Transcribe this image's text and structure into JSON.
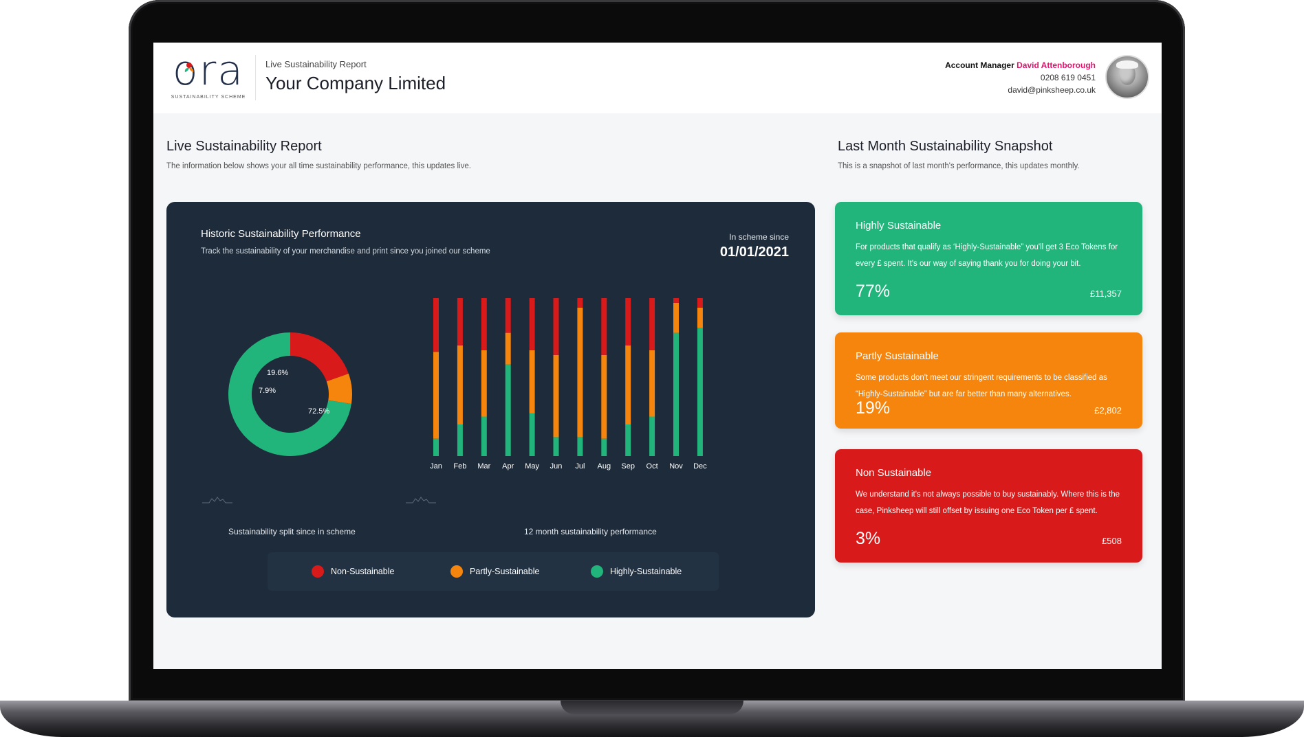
{
  "header": {
    "logo_text": "ora",
    "logo_sub": "SUSTAINABILITY SCHEME",
    "subtitle": "Live Sustainability Report",
    "company": "Your Company Limited",
    "account_label": "Account Manager",
    "account_manager": "David Attenborough",
    "phone": "0208 619 0451",
    "email": "david@pinksheep.co.uk"
  },
  "live_report": {
    "title": "Live Sustainability Report",
    "description": "The information below shows your all time sustainability performance, this updates live."
  },
  "snapshot": {
    "title": "Last Month Sustainability Snapshot",
    "description": "This is a snapshot of last month's performance, this updates monthly."
  },
  "historic": {
    "title": "Historic Sustainability Performance",
    "description": "Track the sustainability of your merchandise and print since you joined our scheme",
    "since_label": "In scheme since",
    "since_date": "01/01/2021",
    "donut_caption": "Sustainability split since in scheme",
    "bars_caption": "12 month sustainability performance"
  },
  "legend": [
    {
      "label": "Non-Sustainable",
      "color": "#d91a1a"
    },
    {
      "label": "Partly-Sustainable",
      "color": "#f5850c"
    },
    {
      "label": "Highly-Sustainable",
      "color": "#22b57b"
    }
  ],
  "colors": {
    "non": "#d91a1a",
    "partly": "#f5850c",
    "highly": "#22b57b",
    "accent": "#e0136e",
    "card": "#1d2b3a"
  },
  "chart_data": [
    {
      "type": "pie",
      "labels": [
        "Non-Sustainable",
        "Partly-Sustainable",
        "Highly-Sustainable"
      ],
      "values": [
        19.6,
        7.9,
        72.5
      ],
      "value_labels": [
        "19.6%",
        "7.9%",
        "72.5%"
      ],
      "donut": true
    },
    {
      "type": "bar",
      "stacked": true,
      "categories": [
        "Jan",
        "Feb",
        "Mar",
        "Apr",
        "May",
        "Jun",
        "Jul",
        "Aug",
        "Sep",
        "Oct",
        "Nov",
        "Dec"
      ],
      "series": [
        {
          "name": "Highly-Sustainable",
          "values": [
            11,
            20,
            25,
            58,
            27,
            12,
            12,
            11,
            20,
            25,
            78,
            81
          ]
        },
        {
          "name": "Partly-Sustainable",
          "values": [
            55,
            50,
            42,
            20,
            40,
            52,
            82,
            53,
            50,
            42,
            19,
            13
          ]
        },
        {
          "name": "Non-Sustainable",
          "values": [
            34,
            30,
            33,
            22,
            33,
            36,
            6,
            36,
            30,
            33,
            3,
            6
          ]
        }
      ],
      "ylim": [
        0,
        100
      ]
    }
  ],
  "cards": [
    {
      "title": "Highly Sustainable",
      "description": "For products that qualify as ‘Highly-Sustainable” you'll get 3 Eco Tokens for every £ spent. It's our way of saying thank you for doing your bit.",
      "percent": "77%",
      "amount": "£11,357",
      "color": "#22b57b"
    },
    {
      "title": "Partly Sustainable",
      "description": "Some products don't meet our stringent requirements to be classified as “Highly-Sustainable” but are far better than many alternatives.",
      "percent": "19%",
      "amount": "£2,802",
      "color": "#f5850c"
    },
    {
      "title": "Non Sustainable",
      "description": "We understand it's not always possible to buy sustainably. Where this is the case, Pinksheep will still offset by issuing one Eco Token per £ spent.",
      "percent": "3%",
      "amount": "£508",
      "color": "#d91a1a"
    }
  ]
}
